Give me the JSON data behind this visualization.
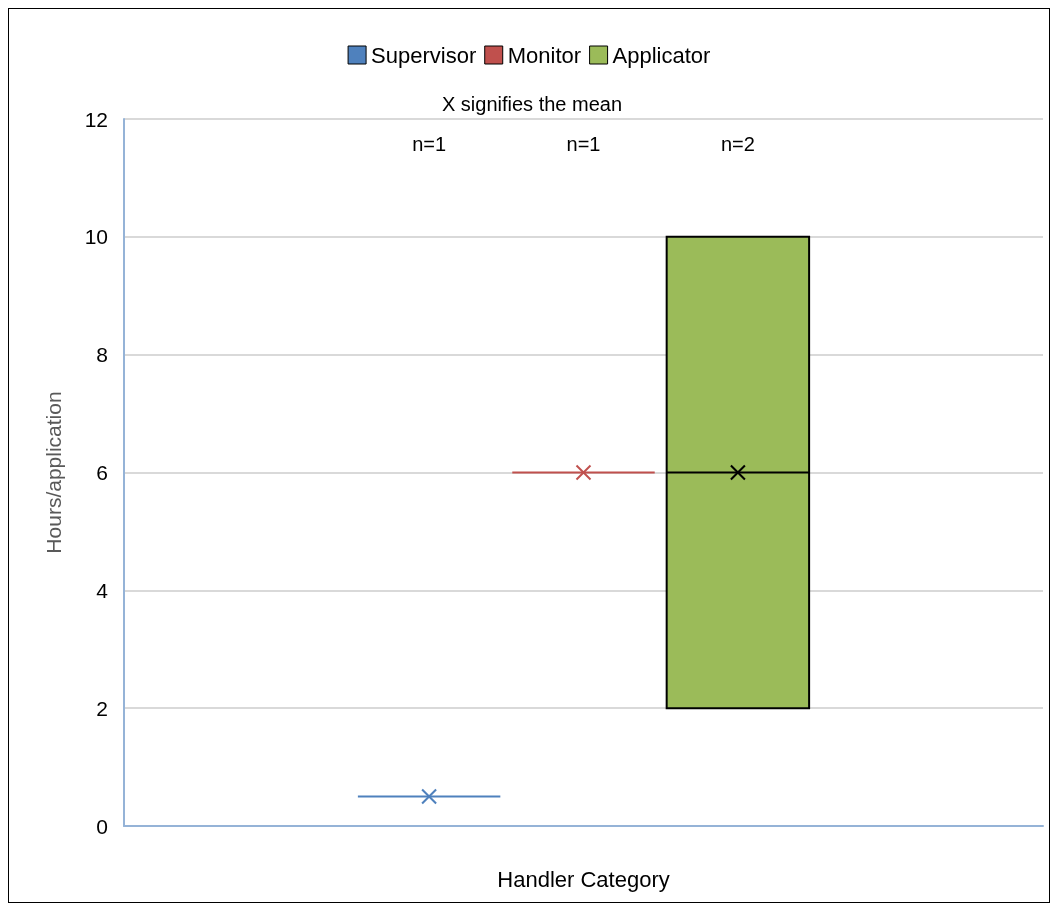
{
  "chart_data": {
    "type": "box",
    "categories": [
      null
    ],
    "series": [
      {
        "name": "Supervisor",
        "color": "#4f81bd",
        "boxes": [
          {
            "low": 0.5,
            "q1": 0.5,
            "median": 0.5,
            "q3": 0.5,
            "high": 0.5,
            "mean": 0.5
          }
        ]
      },
      {
        "name": "Monitor",
        "color": "#c0504d",
        "boxes": [
          {
            "low": 6,
            "q1": 6,
            "median": 6,
            "q3": 6,
            "high": 6,
            "mean": 6
          }
        ]
      },
      {
        "name": "Applicator",
        "color": "#9bbb59",
        "boxes": [
          {
            "low": 2,
            "q1": 2,
            "median": 6,
            "q3": 10,
            "high": 10,
            "mean": 6
          }
        ]
      }
    ],
    "annotations": [
      "X signifies the mean",
      "n=1",
      "n=1",
      "n=2"
    ],
    "xlabel": "Handler Category",
    "ylabel": "Hours/application",
    "ylim": [
      0,
      12
    ],
    "yticks": [
      0,
      2,
      4,
      6,
      8,
      10,
      12
    ],
    "grid": "y",
    "legend": "top",
    "marker": "cross"
  }
}
